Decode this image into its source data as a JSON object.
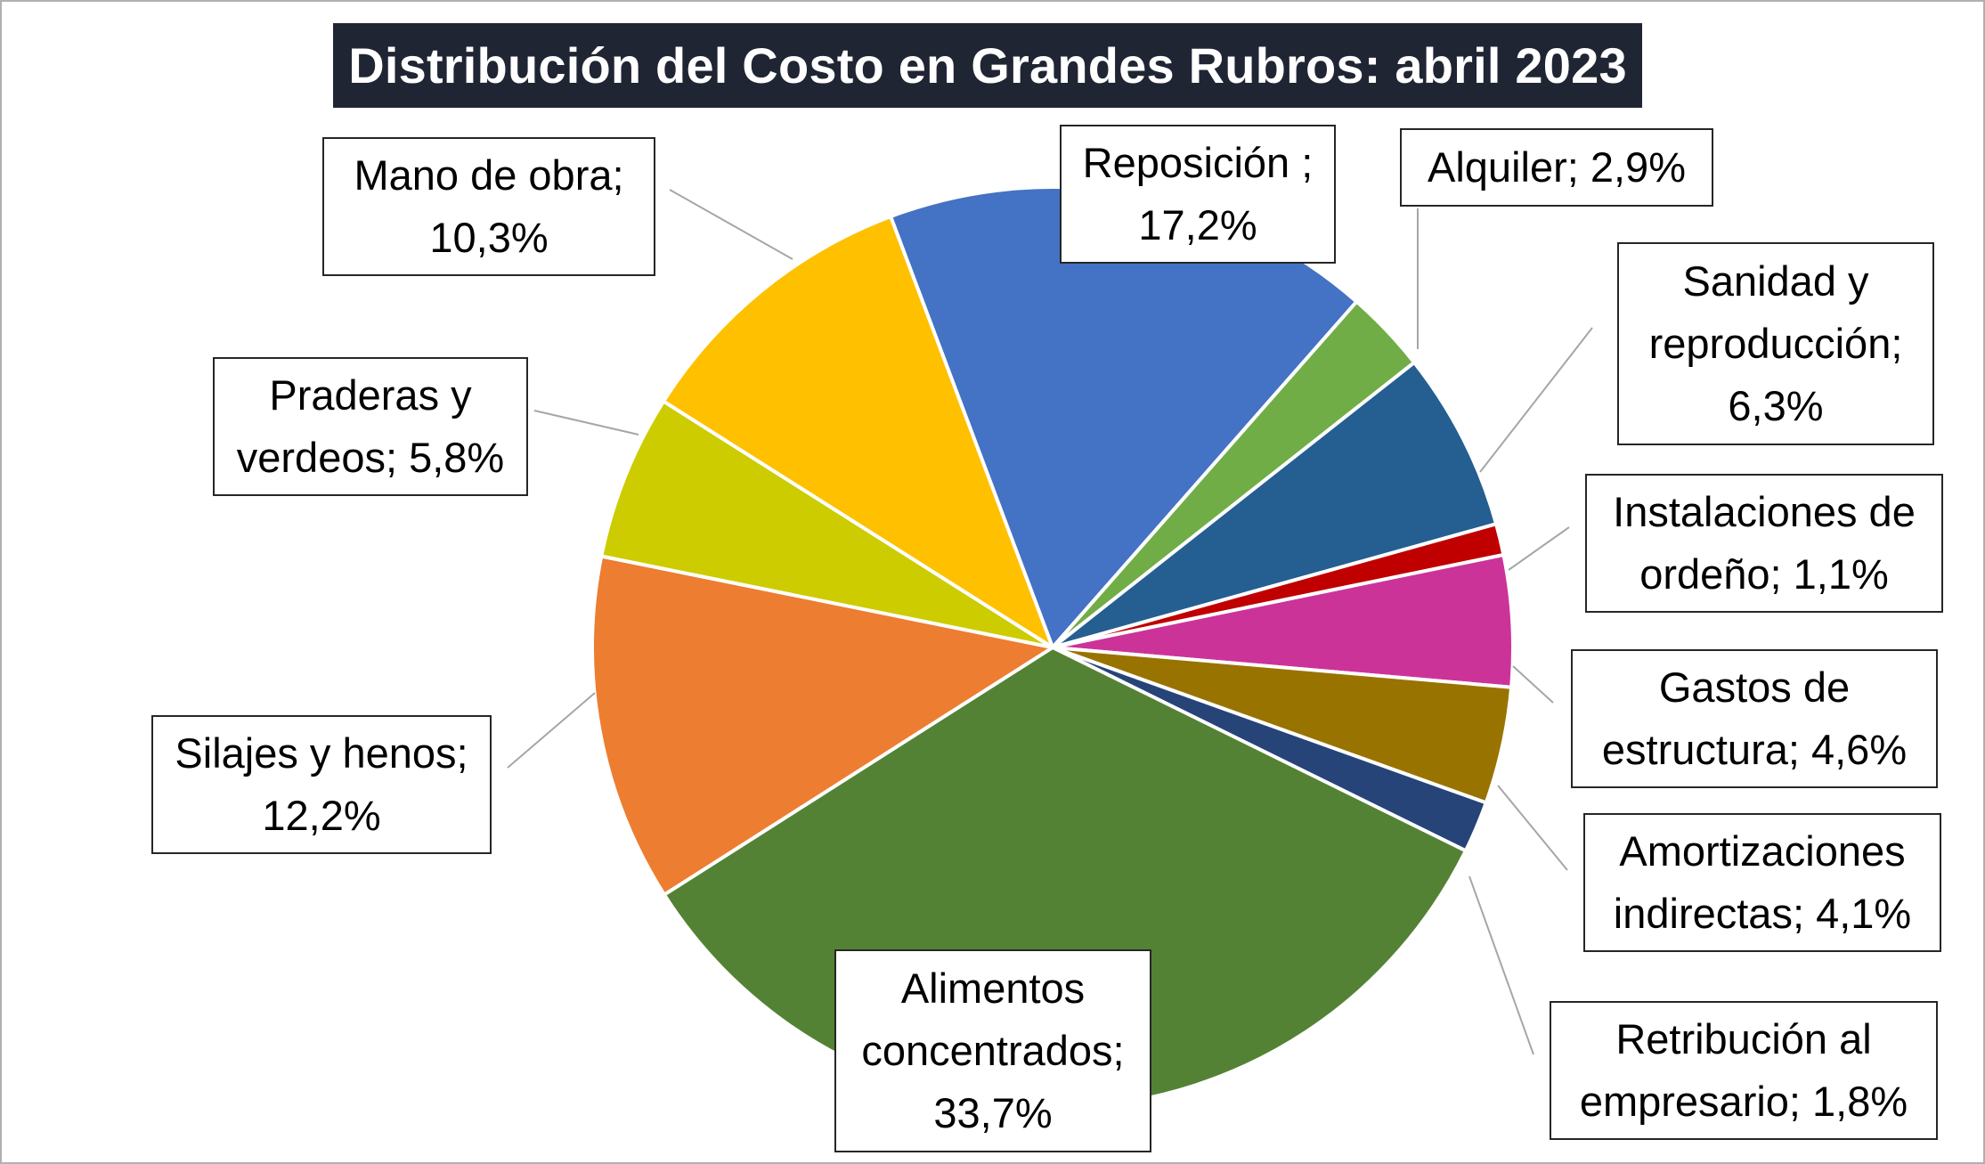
{
  "chart_data": {
    "type": "pie",
    "title": "Distribución del Costo en Grandes Rubros: abril 2023",
    "slices": [
      {
        "name": "Reposición",
        "value": 17.2,
        "label": [
          "Reposición ;",
          "17,2%"
        ],
        "color": "#4472c4"
      },
      {
        "name": "Alquiler",
        "value": 2.9,
        "label": [
          "Alquiler; 2,9%"
        ],
        "color": "#70ad47"
      },
      {
        "name": "Sanidad y reproducción",
        "value": 6.3,
        "label": [
          "Sanidad y",
          "reproducción;",
          "6,3%"
        ],
        "color": "#255e91"
      },
      {
        "name": "Instalaciones de ordeño",
        "value": 1.1,
        "label": [
          "Instalaciones de",
          "ordeño; 1,1%"
        ],
        "color": "#c00000"
      },
      {
        "name": "Gastos de estructura",
        "value": 4.6,
        "label": [
          "Gastos de",
          "estructura; 4,6%"
        ],
        "color": "#cc3399"
      },
      {
        "name": "Amortizaciones indirectas",
        "value": 4.1,
        "label": [
          "Amortizaciones",
          "indirectas; 4,1%"
        ],
        "color": "#997300"
      },
      {
        "name": "Retribución al empresario",
        "value": 1.8,
        "label": [
          "Retribución al",
          "empresario; 1,8%"
        ],
        "color": "#264478"
      },
      {
        "name": "Alimentos concentrados",
        "value": 33.7,
        "label": [
          "Alimentos",
          "concentrados;",
          "33,7%"
        ],
        "color": "#548235"
      },
      {
        "name": "Silajes y henos",
        "value": 12.2,
        "label": [
          "Silajes y henos;",
          "12,2%"
        ],
        "color": "#ed7d31"
      },
      {
        "name": "Praderas y verdeos",
        "value": 5.8,
        "label": [
          "Praderas y",
          "verdeos; 5,8%"
        ],
        "color": "#cccc00"
      },
      {
        "name": "Mano de obra",
        "value": 10.3,
        "label": [
          "Mano de obra;",
          "10,3%"
        ],
        "color": "#ffc000"
      }
    ],
    "start_angle_deg": -20.6,
    "direction": "clockwise",
    "legend": "none",
    "colors": {
      "title_background": "#1f2533",
      "title_text": "#ffffff",
      "leader_line": "#a6a6a6",
      "slice_border": "#ffffff"
    }
  }
}
